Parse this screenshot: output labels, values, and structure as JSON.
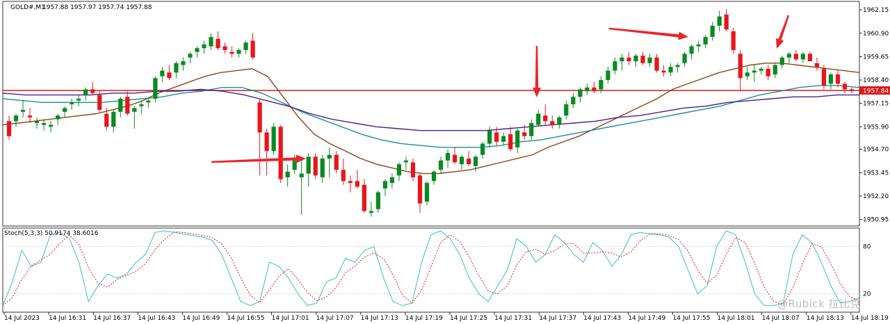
{
  "header": {
    "symbol": "GOLD#,M1",
    "ohlc": "1957.88 1957.97 1957.74 1957.88"
  },
  "stoch_header": "Stoch(5,3,3) 50.9174 38.6016",
  "price_axis": {
    "ticks": [
      "1962.15",
      "1960.90",
      "1959.65",
      "1958.40",
      "1957.15",
      "1955.90",
      "1954.70",
      "1953.45",
      "1952.20",
      "1950.95"
    ],
    "current_price_label": "1957.84"
  },
  "stoch_axis": {
    "ticks": [
      "80",
      "20"
    ]
  },
  "time_axis": {
    "labels": [
      "14 Jul 2023",
      "14 Jul 16:31",
      "14 Jul 16:37",
      "14 Jul 16:43",
      "14 Jul 16:49",
      "14 Jul 16:55",
      "14 Jul 17:01",
      "14 Jul 17:07",
      "14 Jul 17:13",
      "14 Jul 17:19",
      "14 Jul 17:25",
      "14 Jul 17:31",
      "14 Jul 17:37",
      "14 Jul 17:43",
      "14 Jul 17:49",
      "14 Jul 17:55",
      "14 Jul 18:01",
      "14 Jul 18:07",
      "14 Jul 18:13",
      "14 Jul 18:19"
    ]
  },
  "watermark": "@Rubick 拉比克",
  "colors": {
    "bull": "#0a8a22",
    "bear": "#e8161b",
    "ma_brown": "#8b4513",
    "ma_teal": "#17918f",
    "ma_purple": "#4b1d8f",
    "hline": "#d81b1b",
    "stoch_main": "#35c0c0",
    "stoch_signal": "#e8161b",
    "arrow": "#e8262a",
    "grid": "#c8c8c8"
  },
  "chart_data": {
    "type": "candlestick",
    "ylim": [
      1950.6,
      1962.6
    ],
    "horizontal_line": 1957.84,
    "candles": [
      [
        1956.2,
        1956.5,
        1955.2,
        1955.4
      ],
      [
        1956.2,
        1956.6,
        1955.9,
        1956.5
      ],
      [
        1956.7,
        1957.3,
        1956.4,
        1956.8
      ],
      [
        1956.5,
        1956.9,
        1956.1,
        1956.4
      ],
      [
        1956.1,
        1956.4,
        1955.8,
        1956.2
      ],
      [
        1956.0,
        1956.3,
        1955.7,
        1956.1
      ],
      [
        1955.9,
        1956.2,
        1955.6,
        1956.0
      ],
      [
        1956.3,
        1956.6,
        1956.0,
        1956.5
      ],
      [
        1956.7,
        1957.0,
        1956.4,
        1956.9
      ],
      [
        1957.1,
        1957.4,
        1956.8,
        1957.2
      ],
      [
        1957.3,
        1957.6,
        1957.0,
        1957.4
      ],
      [
        1957.6,
        1958.0,
        1957.3,
        1957.9
      ],
      [
        1957.9,
        1958.3,
        1957.6,
        1957.7
      ],
      [
        1957.6,
        1957.8,
        1956.7,
        1956.8
      ],
      [
        1956.6,
        1956.9,
        1955.7,
        1955.9
      ],
      [
        1955.9,
        1956.8,
        1955.6,
        1956.7
      ],
      [
        1956.7,
        1957.5,
        1956.4,
        1957.4
      ],
      [
        1957.5,
        1957.8,
        1956.5,
        1956.6
      ],
      [
        1956.7,
        1957.0,
        1955.8,
        1956.9
      ],
      [
        1957.0,
        1957.3,
        1956.6,
        1957.1
      ],
      [
        1957.2,
        1957.5,
        1956.9,
        1957.3
      ],
      [
        1957.4,
        1958.6,
        1957.2,
        1958.5
      ],
      [
        1958.6,
        1959.1,
        1958.3,
        1958.9
      ],
      [
        1958.8,
        1959.2,
        1958.4,
        1958.5
      ],
      [
        1958.8,
        1959.4,
        1958.5,
        1959.3
      ],
      [
        1959.2,
        1959.6,
        1958.9,
        1959.4
      ],
      [
        1959.6,
        1959.9,
        1959.3,
        1959.8
      ],
      [
        1959.9,
        1960.2,
        1959.6,
        1960.1
      ],
      [
        1960.1,
        1960.5,
        1959.8,
        1960.3
      ],
      [
        1960.2,
        1960.9,
        1960.0,
        1960.7
      ],
      [
        1960.6,
        1961.0,
        1960.0,
        1960.1
      ],
      [
        1960.2,
        1960.4,
        1959.8,
        1960.0
      ],
      [
        1959.9,
        1960.2,
        1959.6,
        1959.8
      ],
      [
        1959.8,
        1960.1,
        1959.6,
        1960.0
      ],
      [
        1960.0,
        1960.5,
        1959.8,
        1960.4
      ],
      [
        1960.5,
        1960.9,
        1959.5,
        1959.6
      ],
      [
        1957.2,
        1957.4,
        1953.3,
        1955.6
      ],
      [
        1955.6,
        1955.8,
        1953.3,
        1954.6
      ],
      [
        1954.6,
        1956.1,
        1954.4,
        1955.9
      ],
      [
        1955.9,
        1956.0,
        1952.9,
        1953.1
      ],
      [
        1953.2,
        1953.9,
        1952.7,
        1953.5
      ],
      [
        1953.6,
        1954.4,
        1953.4,
        1954.1
      ],
      [
        1953.2,
        1954.3,
        1951.2,
        1953.4
      ],
      [
        1953.4,
        1954.5,
        1952.7,
        1954.3
      ],
      [
        1954.3,
        1954.5,
        1953.1,
        1953.3
      ],
      [
        1953.2,
        1954.4,
        1952.9,
        1954.2
      ],
      [
        1954.2,
        1954.8,
        1953.2,
        1954.4
      ],
      [
        1954.4,
        1954.6,
        1953.4,
        1953.6
      ],
      [
        1953.6,
        1954.2,
        1952.8,
        1953.0
      ],
      [
        1953.0,
        1953.3,
        1952.4,
        1952.9
      ],
      [
        1953.0,
        1953.6,
        1952.6,
        1952.7
      ],
      [
        1952.8,
        1953.1,
        1951.3,
        1951.4
      ],
      [
        1951.3,
        1951.9,
        1951.1,
        1951.4
      ],
      [
        1951.5,
        1952.5,
        1951.3,
        1952.4
      ],
      [
        1952.6,
        1953.1,
        1952.2,
        1953.0
      ],
      [
        1952.9,
        1953.4,
        1952.6,
        1953.2
      ],
      [
        1953.3,
        1954.0,
        1953.0,
        1953.9
      ],
      [
        1954.0,
        1954.3,
        1953.6,
        1954.1
      ],
      [
        1954.0,
        1954.2,
        1953.0,
        1953.2
      ],
      [
        1953.3,
        1953.4,
        1951.3,
        1951.8
      ],
      [
        1951.9,
        1953.0,
        1951.7,
        1952.9
      ],
      [
        1953.0,
        1953.6,
        1952.8,
        1953.5
      ],
      [
        1953.6,
        1954.3,
        1953.4,
        1954.1
      ],
      [
        1954.1,
        1954.7,
        1953.7,
        1954.5
      ],
      [
        1954.4,
        1954.8,
        1953.9,
        1954.0
      ],
      [
        1953.9,
        1954.4,
        1953.6,
        1954.3
      ],
      [
        1954.2,
        1954.6,
        1953.8,
        1953.9
      ],
      [
        1953.8,
        1954.4,
        1953.5,
        1954.3
      ],
      [
        1954.4,
        1955.1,
        1954.2,
        1955.0
      ],
      [
        1955.0,
        1955.9,
        1954.8,
        1955.7
      ],
      [
        1955.6,
        1955.9,
        1954.9,
        1955.1
      ],
      [
        1955.1,
        1955.6,
        1954.9,
        1955.4
      ],
      [
        1955.5,
        1955.9,
        1954.6,
        1954.7
      ],
      [
        1954.8,
        1955.8,
        1954.5,
        1955.7
      ],
      [
        1955.6,
        1956.0,
        1955.2,
        1955.4
      ],
      [
        1955.4,
        1956.3,
        1955.2,
        1956.1
      ],
      [
        1956.0,
        1956.8,
        1955.9,
        1956.6
      ],
      [
        1956.5,
        1957.1,
        1956.0,
        1956.2
      ],
      [
        1956.2,
        1956.5,
        1955.8,
        1956.0
      ],
      [
        1956.0,
        1956.5,
        1955.8,
        1956.4
      ],
      [
        1956.5,
        1957.3,
        1956.3,
        1957.1
      ],
      [
        1957.1,
        1957.7,
        1956.9,
        1957.5
      ],
      [
        1957.5,
        1958.0,
        1957.2,
        1957.9
      ],
      [
        1957.8,
        1958.2,
        1957.6,
        1958.0
      ],
      [
        1958.0,
        1958.3,
        1957.7,
        1957.8
      ],
      [
        1957.9,
        1958.6,
        1957.7,
        1958.4
      ],
      [
        1958.4,
        1959.1,
        1958.2,
        1958.9
      ],
      [
        1958.9,
        1959.6,
        1958.7,
        1959.4
      ],
      [
        1959.4,
        1959.8,
        1958.9,
        1959.6
      ],
      [
        1959.6,
        1959.9,
        1959.2,
        1959.4
      ],
      [
        1959.4,
        1959.8,
        1959.1,
        1959.7
      ],
      [
        1959.7,
        1959.9,
        1959.2,
        1959.3
      ],
      [
        1959.3,
        1959.8,
        1959.1,
        1959.6
      ],
      [
        1959.6,
        1959.8,
        1958.8,
        1958.9
      ],
      [
        1958.9,
        1959.2,
        1958.6,
        1958.8
      ],
      [
        1958.8,
        1959.3,
        1958.6,
        1959.1
      ],
      [
        1959.1,
        1959.3,
        1958.8,
        1959.2
      ],
      [
        1959.3,
        1959.9,
        1959.1,
        1959.8
      ],
      [
        1959.8,
        1960.3,
        1959.5,
        1960.2
      ],
      [
        1960.2,
        1960.5,
        1959.9,
        1960.3
      ],
      [
        1960.3,
        1960.8,
        1960.1,
        1960.7
      ],
      [
        1960.7,
        1961.5,
        1960.5,
        1961.3
      ],
      [
        1961.3,
        1962.1,
        1961.0,
        1961.8
      ],
      [
        1961.9,
        1962.2,
        1961.0,
        1961.1
      ],
      [
        1961.0,
        1961.2,
        1959.8,
        1960.0
      ],
      [
        1959.8,
        1960.0,
        1957.8,
        1958.5
      ],
      [
        1958.6,
        1959.1,
        1958.4,
        1958.8
      ],
      [
        1958.8,
        1959.2,
        1958.3,
        1958.9
      ],
      [
        1958.9,
        1959.1,
        1958.7,
        1959.0
      ],
      [
        1959.0,
        1959.2,
        1958.4,
        1958.6
      ],
      [
        1958.7,
        1959.3,
        1958.5,
        1959.2
      ],
      [
        1959.2,
        1959.7,
        1959.0,
        1959.6
      ],
      [
        1959.6,
        1959.9,
        1959.3,
        1959.8
      ],
      [
        1959.8,
        1960.0,
        1959.4,
        1959.5
      ],
      [
        1959.5,
        1959.9,
        1959.3,
        1959.8
      ],
      [
        1959.8,
        1959.9,
        1959.4,
        1959.4
      ],
      [
        1959.3,
        1959.6,
        1958.9,
        1959.1
      ],
      [
        1959.0,
        1959.2,
        1957.9,
        1958.1
      ],
      [
        1958.2,
        1958.8,
        1957.9,
        1958.7
      ],
      [
        1958.7,
        1958.9,
        1958.0,
        1958.2
      ],
      [
        1958.2,
        1958.3,
        1957.7,
        1957.9
      ],
      [
        1957.9,
        1958.0,
        1957.7,
        1957.8
      ]
    ],
    "moving_averages": [
      {
        "color": "#8b4513",
        "values": [
          1956.0,
          1956.1,
          1956.2,
          1956.3,
          1956.4,
          1956.5,
          1956.6,
          1956.8,
          1957.0,
          1957.3,
          1957.7,
          1958.0,
          1958.3,
          1958.6,
          1958.8,
          1958.9,
          1959.0,
          1958.6,
          1957.5,
          1956.4,
          1955.5,
          1955.0,
          1954.6,
          1954.2,
          1953.9,
          1953.7,
          1953.5,
          1953.4,
          1953.4,
          1953.5,
          1953.6,
          1953.8,
          1954.0,
          1954.2,
          1954.4,
          1954.8,
          1955.1,
          1955.4,
          1955.8,
          1956.2,
          1956.6,
          1957.0,
          1957.4,
          1957.9,
          1958.2,
          1958.5,
          1958.8,
          1959.0,
          1959.2,
          1959.3,
          1959.3,
          1959.2,
          1959.1,
          1959.0,
          1958.9,
          1958.8
        ]
      },
      {
        "color": "#17918f",
        "values": [
          1957.4,
          1957.3,
          1957.2,
          1957.2,
          1957.2,
          1957.2,
          1957.3,
          1957.4,
          1957.5,
          1957.7,
          1957.8,
          1958.0,
          1958.0,
          1957.7,
          1957.2,
          1956.7,
          1956.3,
          1955.9,
          1955.5,
          1955.2,
          1955.0,
          1954.9,
          1954.8,
          1954.8,
          1954.8,
          1954.9,
          1955.1,
          1955.2,
          1955.4,
          1955.6,
          1955.8,
          1956.0,
          1956.2,
          1956.4,
          1956.6,
          1956.8,
          1957.0,
          1957.3,
          1957.6,
          1957.8,
          1958.0,
          1958.1,
          1958.1,
          1958.0
        ]
      },
      {
        "color": "#4b1d8f",
        "values": [
          1957.7,
          1957.6,
          1957.6,
          1957.6,
          1957.6,
          1957.7,
          1957.7,
          1957.8,
          1957.8,
          1957.9,
          1957.8,
          1957.6,
          1957.3,
          1957.0,
          1956.6,
          1956.3,
          1956.1,
          1955.9,
          1955.8,
          1955.7,
          1955.7,
          1955.7,
          1955.7,
          1955.8,
          1955.9,
          1956.0,
          1956.1,
          1956.2,
          1956.4,
          1956.5,
          1956.7,
          1956.9,
          1957.0,
          1957.2,
          1957.3,
          1957.4,
          1957.5,
          1957.5,
          1957.6,
          1957.6
        ]
      }
    ],
    "stochastic": {
      "ylim": [
        0,
        100
      ],
      "levels": [
        80,
        20
      ],
      "main": [
        5,
        35,
        75,
        55,
        60,
        95,
        98,
        90,
        60,
        10,
        30,
        45,
        40,
        45,
        60,
        70,
        98,
        100,
        98,
        96,
        94,
        92,
        88,
        70,
        40,
        10,
        5,
        10,
        60,
        55,
        40,
        20,
        5,
        8,
        35,
        40,
        65,
        60,
        75,
        80,
        40,
        10,
        5,
        8,
        60,
        95,
        100,
        90,
        70,
        40,
        20,
        10,
        30,
        50,
        90,
        80,
        60,
        70,
        95,
        85,
        70,
        60,
        85,
        75,
        55,
        70,
        95,
        98,
        96,
        95,
        92,
        80,
        50,
        20,
        30,
        80,
        100,
        95,
        60,
        20,
        5,
        5,
        8,
        70,
        95,
        85,
        60,
        30,
        8,
        10,
        15
      ]
    }
  }
}
